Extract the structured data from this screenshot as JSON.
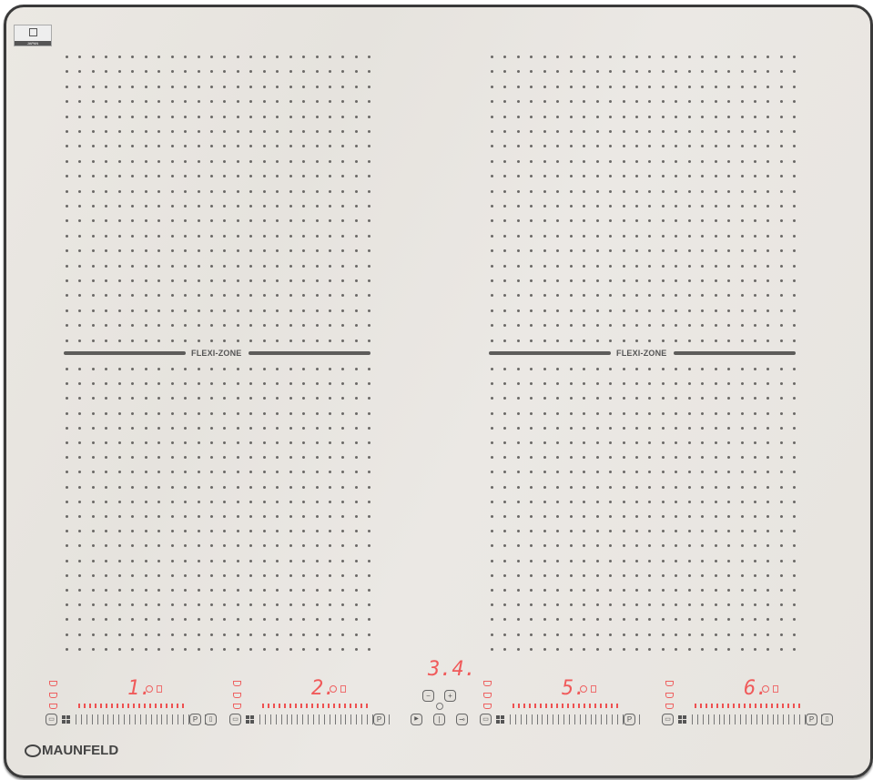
{
  "brand": {
    "name": "MAUNFELD",
    "badge_text": "JAPAN"
  },
  "zones_top": [
    {
      "label": "FLEXI-ZONE"
    },
    {
      "label": "FLEXI-ZONE"
    }
  ],
  "controls": {
    "zones": [
      {
        "display": "1.",
        "extra_button": true
      },
      {
        "display": "2.",
        "extra_button": false
      },
      {
        "display": "5.",
        "extra_button": false
      },
      {
        "display": "6.",
        "extra_button": true
      }
    ],
    "center": {
      "display": "3.4.",
      "minus": "−",
      "plus": "+",
      "play": "▶",
      "power": "|",
      "lock": "⊸"
    },
    "slider_button": "P"
  },
  "colors": {
    "display_red": "#f05a5a",
    "surface": "#e9e6e1",
    "frame": "#3a3a3a"
  },
  "icons": [
    "pot-icon",
    "timer-icon",
    "grid-icon",
    "pause-play-icon",
    "power-icon",
    "key-lock-icon",
    "minus-icon",
    "plus-icon"
  ]
}
